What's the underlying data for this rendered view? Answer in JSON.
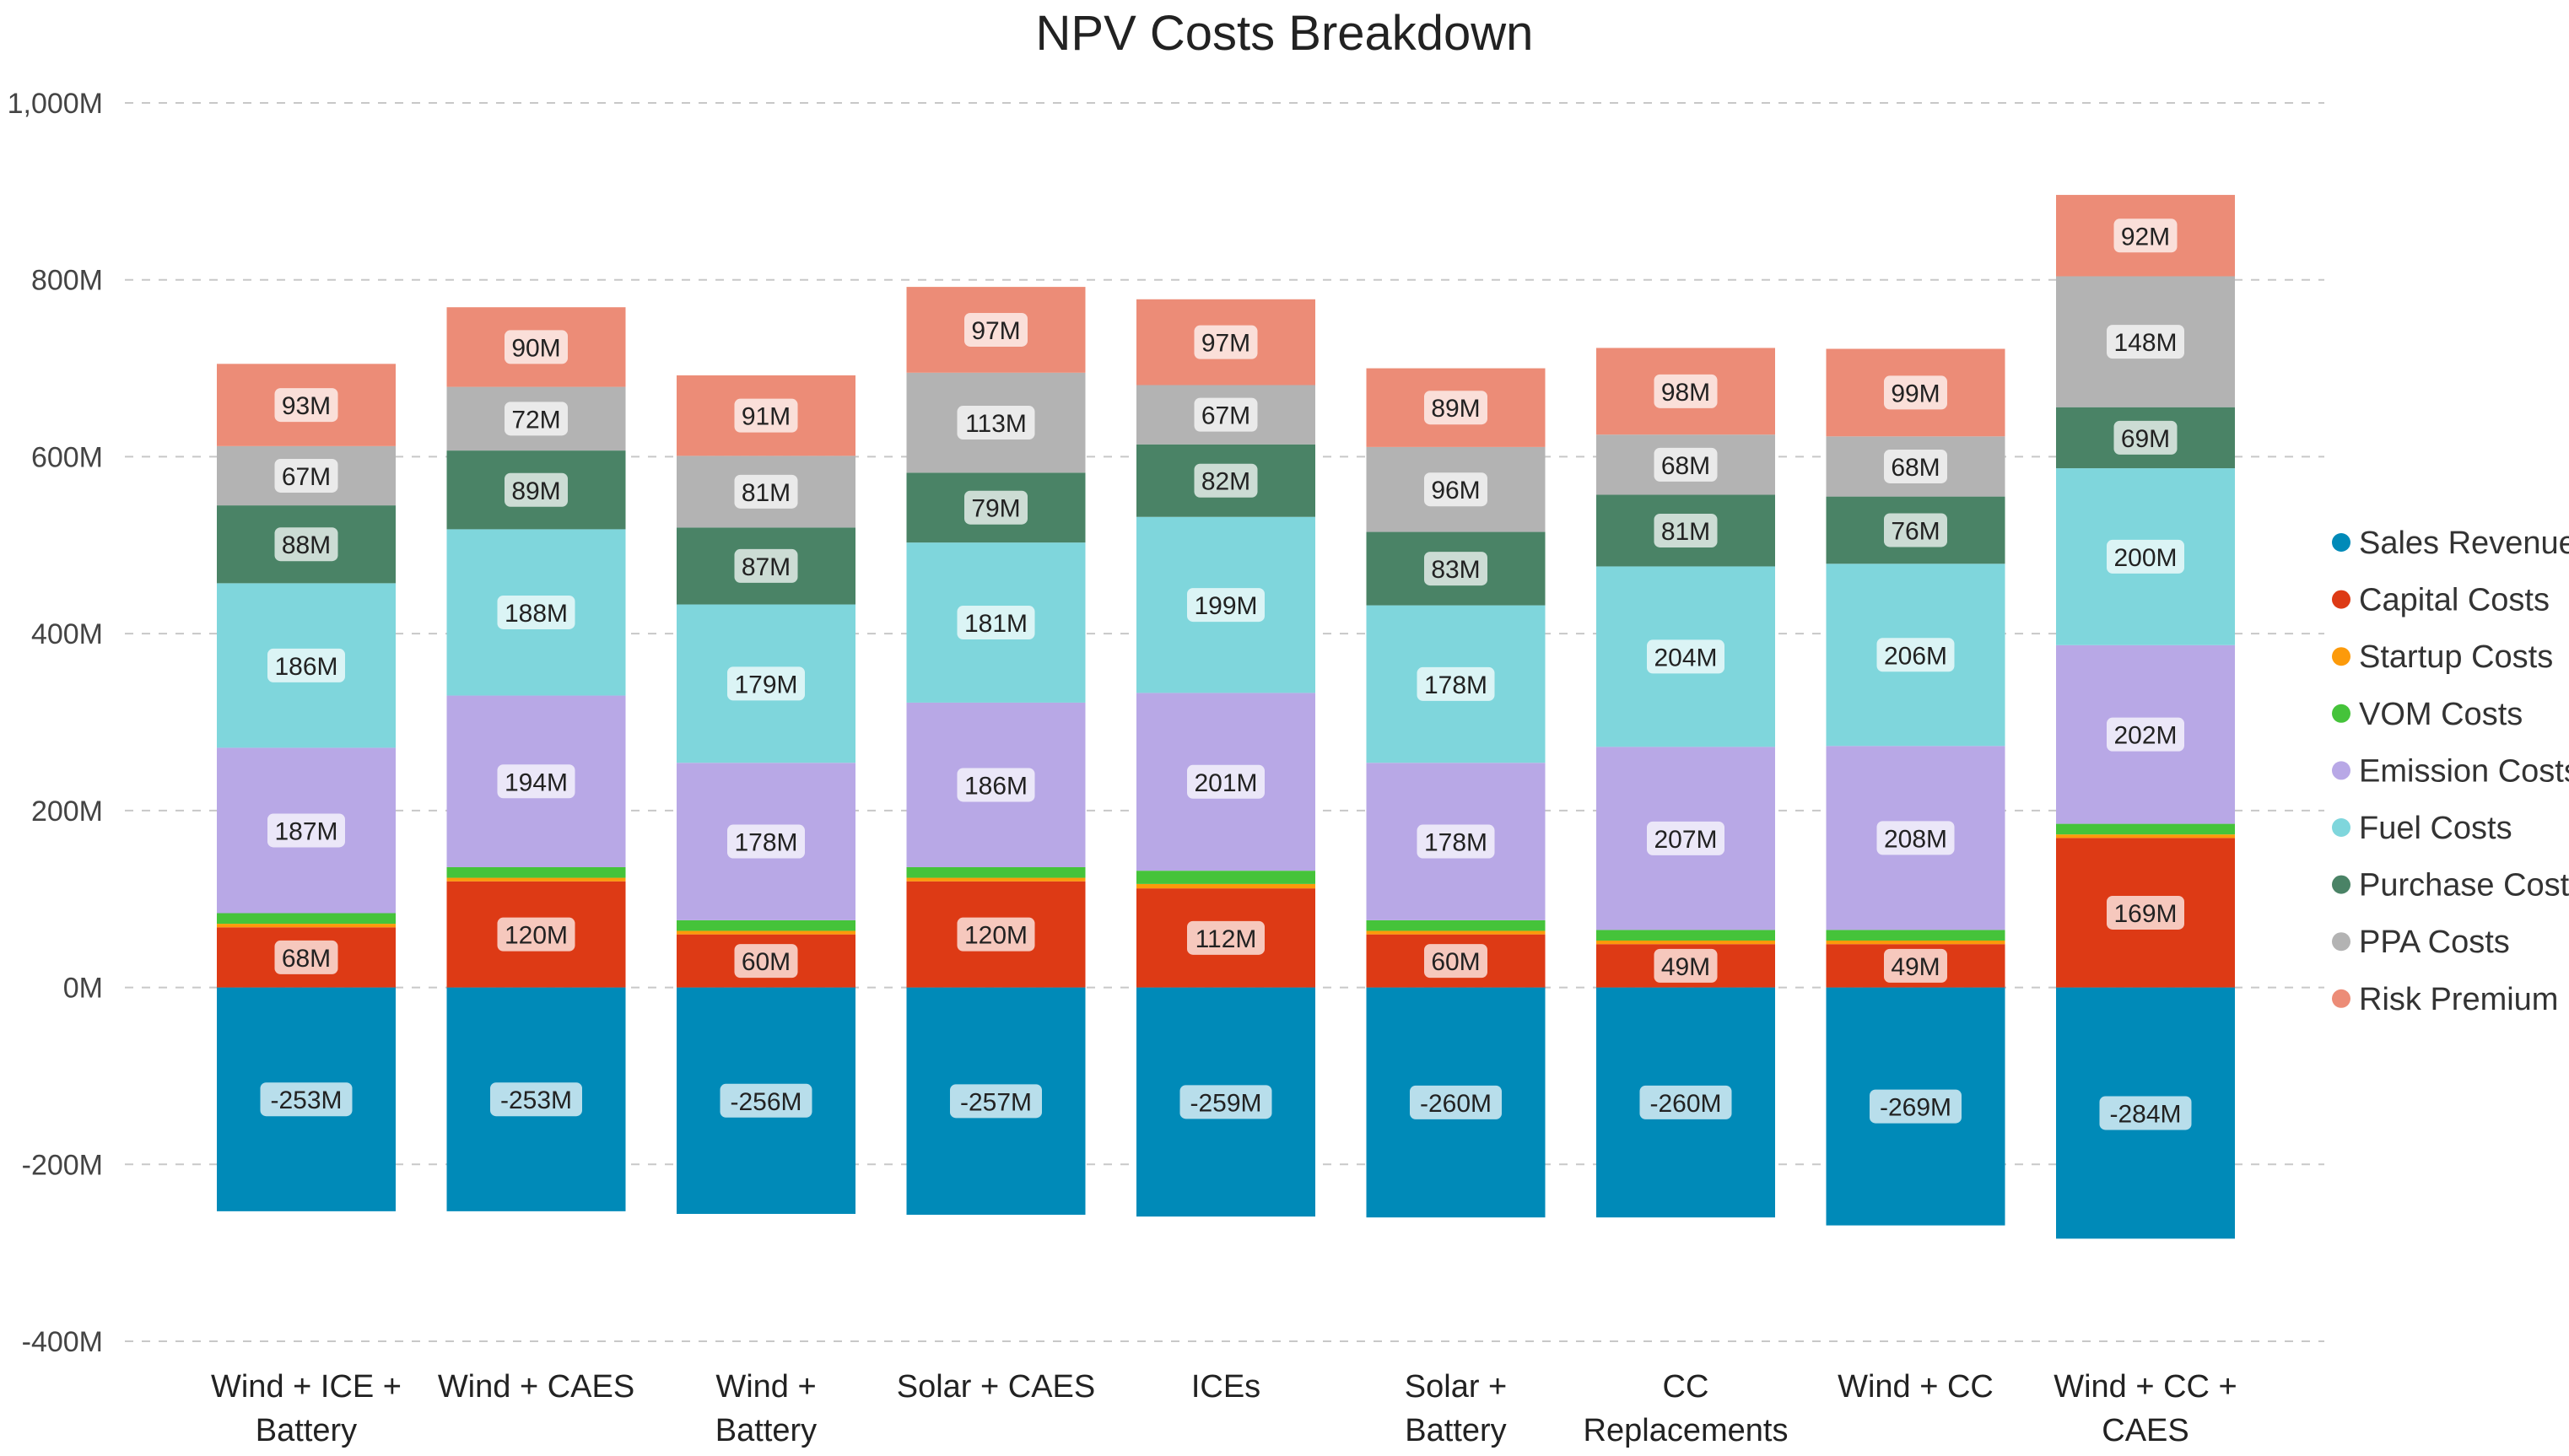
{
  "chart_data": {
    "type": "bar",
    "stacked": true,
    "title": "NPV Costs Breakdown",
    "categories": [
      [
        "Wind + ICE +",
        "Battery"
      ],
      [
        "Wind + CAES"
      ],
      [
        "Wind +",
        "Battery"
      ],
      [
        "Solar + CAES"
      ],
      [
        "ICEs"
      ],
      [
        "Solar +",
        "Battery"
      ],
      [
        "CC",
        "Replacements"
      ],
      [
        "Wind + CC"
      ],
      [
        "Wind + CC +",
        "CAES"
      ]
    ],
    "ylim": [
      -400,
      1000
    ],
    "yticks": [
      -400,
      -200,
      0,
      200,
      400,
      600,
      800,
      1000
    ],
    "ytick_labels": [
      "-400M",
      "-200M",
      "0M",
      "200M",
      "400M",
      "600M",
      "800M",
      "1,000M"
    ],
    "grid": true,
    "legend_position": "right",
    "series": [
      {
        "name": "Sales Revenue",
        "color": "#008ab8",
        "values": [
          -253,
          -253,
          -256,
          -257,
          -259,
          -260,
          -260,
          -269,
          -284
        ],
        "labels": [
          "-253M",
          "-253M",
          "-256M",
          "-257M",
          "-259M",
          "-260M",
          "-260M",
          "-269M",
          "-284M"
        ]
      },
      {
        "name": "Capital Costs",
        "color": "#dd3a15",
        "values": [
          68,
          120,
          60,
          120,
          112,
          60,
          49,
          49,
          169
        ],
        "labels": [
          "68M",
          "120M",
          "60M",
          "120M",
          "112M",
          "60M",
          "49M",
          "49M",
          "169M"
        ]
      },
      {
        "name": "Startup Costs",
        "color": "#fc9a0a",
        "values": [
          4,
          4,
          4,
          4,
          5,
          4,
          4,
          4,
          4
        ],
        "labels": []
      },
      {
        "name": "VOM Costs",
        "color": "#45c33a",
        "values": [
          12,
          12,
          12,
          12,
          15,
          12,
          12,
          12,
          12
        ],
        "labels": []
      },
      {
        "name": "Emission Costs",
        "color": "#b8a8e6",
        "values": [
          187,
          194,
          178,
          186,
          201,
          178,
          207,
          208,
          202
        ],
        "labels": [
          "187M",
          "194M",
          "178M",
          "186M",
          "201M",
          "178M",
          "207M",
          "208M",
          "202M"
        ]
      },
      {
        "name": "Fuel Costs",
        "color": "#7fd6dc",
        "values": [
          186,
          188,
          179,
          181,
          199,
          178,
          204,
          206,
          200
        ],
        "labels": [
          "186M",
          "188M",
          "179M",
          "181M",
          "199M",
          "178M",
          "204M",
          "206M",
          "200M"
        ]
      },
      {
        "name": "Purchase Costs",
        "color": "#4a8366",
        "values": [
          88,
          89,
          87,
          79,
          82,
          83,
          81,
          76,
          69
        ],
        "labels": [
          "88M",
          "89M",
          "87M",
          "79M",
          "82M",
          "83M",
          "81M",
          "76M",
          "69M"
        ]
      },
      {
        "name": "PPA Costs",
        "color": "#b3b3b3",
        "values": [
          67,
          72,
          81,
          113,
          67,
          96,
          68,
          68,
          148
        ],
        "labels": [
          "67M",
          "72M",
          "81M",
          "113M",
          "67M",
          "96M",
          "68M",
          "68M",
          "148M"
        ]
      },
      {
        "name": "Risk Premium",
        "color": "#ec8c77",
        "values": [
          93,
          90,
          91,
          97,
          97,
          89,
          98,
          99,
          92
        ],
        "labels": [
          "93M",
          "90M",
          "91M",
          "97M",
          "97M",
          "89M",
          "98M",
          "99M",
          "92M"
        ]
      }
    ]
  }
}
